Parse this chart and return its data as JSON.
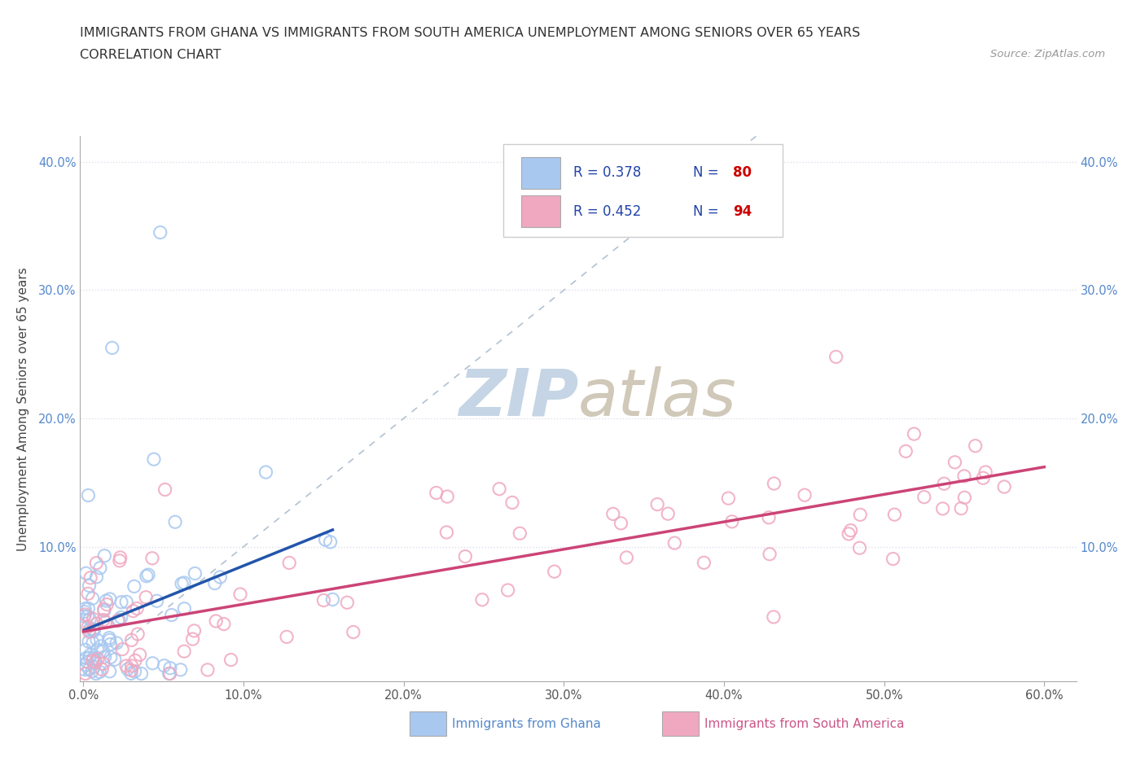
{
  "title_line1": "IMMIGRANTS FROM GHANA VS IMMIGRANTS FROM SOUTH AMERICA UNEMPLOYMENT AMONG SENIORS OVER 65 YEARS",
  "title_line2": "CORRELATION CHART",
  "source_text": "Source: ZipAtlas.com",
  "ylabel": "Unemployment Among Seniors over 65 years",
  "xlim": [
    -0.002,
    0.62
  ],
  "ylim": [
    -0.005,
    0.42
  ],
  "xticks": [
    0.0,
    0.1,
    0.2,
    0.3,
    0.4,
    0.5,
    0.6
  ],
  "yticks": [
    0.0,
    0.1,
    0.2,
    0.3,
    0.4
  ],
  "xtick_labels": [
    "0.0%",
    "10.0%",
    "20.0%",
    "30.0%",
    "40.0%",
    "50.0%",
    "60.0%"
  ],
  "ytick_labels_left": [
    "",
    "10.0%",
    "20.0%",
    "30.0%",
    "40.0%"
  ],
  "ytick_labels_right": [
    "",
    "10.0%",
    "20.0%",
    "30.0%",
    "40.0%"
  ],
  "ghana_color": "#a8c8f0",
  "south_america_color": "#f0a8c0",
  "ghana_R": 0.378,
  "ghana_N": 80,
  "south_america_R": 0.452,
  "south_america_N": 94,
  "ghana_line_color": "#2255aa",
  "south_america_line_color": "#cc4477",
  "diagonal_color": "#aabbcc",
  "watermark_zip_color": "#c5d5e5",
  "watermark_atlas_color": "#d0c8b8",
  "background_color": "#ffffff",
  "grid_color": "#ddddee",
  "legend_text_color": "#2244aa",
  "legend_border_color": "#cccccc"
}
